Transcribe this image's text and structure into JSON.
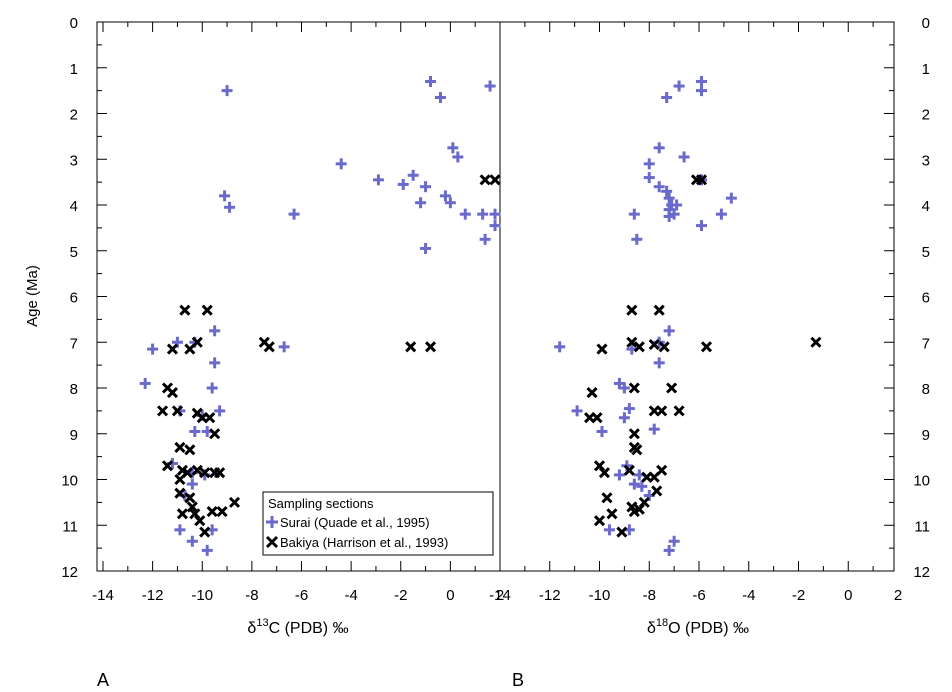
{
  "figure": {
    "ylabel": "Age (Ma)",
    "panel_a_letter": "A",
    "panel_b_letter": "B",
    "xlabel_a": {
      "delta": "δ",
      "sup": "13",
      "rest": "C (PDB) ‰"
    },
    "xlabel_b": {
      "delta": "δ",
      "sup": "18",
      "rest": "O (PDB) ‰"
    },
    "legend": {
      "title": "Sampling sections",
      "entries": [
        {
          "label": "Surai (Quade et al., 1995)",
          "color": "#6a6acc",
          "marker": "plus"
        },
        {
          "label": "Bakiya (Harrison et al., 1993)",
          "color": "#000000",
          "marker": "x"
        }
      ]
    }
  },
  "chart_data": [
    {
      "type": "scatter",
      "panel": "A",
      "xlim": [
        -14,
        2
      ],
      "ylim": [
        12,
        0
      ],
      "x_ticks": [
        -14,
        -12,
        -10,
        -8,
        -6,
        -4,
        -2,
        0,
        2
      ],
      "y_ticks": [
        0,
        1,
        2,
        3,
        4,
        5,
        6,
        7,
        8,
        9,
        10,
        11,
        12
      ],
      "series": [
        {
          "name": "Surai (Quade et al., 1995)",
          "color": "#6a6acc",
          "marker": "plus",
          "points": [
            [
              -9.0,
              1.5
            ],
            [
              -0.8,
              1.3
            ],
            [
              -0.4,
              1.65
            ],
            [
              1.6,
              1.4
            ],
            [
              0.1,
              2.75
            ],
            [
              0.3,
              2.95
            ],
            [
              -4.4,
              3.1
            ],
            [
              -2.9,
              3.45
            ],
            [
              -1.9,
              3.55
            ],
            [
              -1.5,
              3.35
            ],
            [
              -1.0,
              3.6
            ],
            [
              -0.2,
              3.8
            ],
            [
              0.0,
              3.95
            ],
            [
              -1.2,
              3.95
            ],
            [
              -9.1,
              3.8
            ],
            [
              -8.9,
              4.05
            ],
            [
              -6.3,
              4.2
            ],
            [
              0.6,
              4.2
            ],
            [
              1.3,
              4.2
            ],
            [
              1.8,
              4.2
            ],
            [
              1.8,
              4.45
            ],
            [
              1.4,
              4.75
            ],
            [
              -1.0,
              4.95
            ],
            [
              -9.5,
              6.75
            ],
            [
              -9.5,
              7.45
            ],
            [
              -12.0,
              7.15
            ],
            [
              -11.0,
              7.0
            ],
            [
              -10.3,
              7.0
            ],
            [
              -6.7,
              7.1
            ],
            [
              -12.3,
              7.9
            ],
            [
              -9.6,
              8.0
            ],
            [
              -10.9,
              8.5
            ],
            [
              -9.3,
              8.5
            ],
            [
              -10.0,
              8.6
            ],
            [
              -10.3,
              8.95
            ],
            [
              -9.8,
              8.95
            ],
            [
              -11.2,
              9.65
            ],
            [
              -10.4,
              9.85
            ],
            [
              -9.9,
              9.9
            ],
            [
              -10.4,
              10.1
            ],
            [
              -10.7,
              10.35
            ],
            [
              -10.9,
              11.1
            ],
            [
              -9.6,
              11.1
            ],
            [
              -10.4,
              11.35
            ],
            [
              -9.8,
              11.55
            ]
          ]
        },
        {
          "name": "Bakiya (Harrison et al., 1993)",
          "color": "#000000",
          "marker": "x",
          "points": [
            [
              1.4,
              3.45
            ],
            [
              1.8,
              3.45
            ],
            [
              -10.7,
              6.3
            ],
            [
              -9.8,
              6.3
            ],
            [
              -11.2,
              7.15
            ],
            [
              -10.5,
              7.15
            ],
            [
              -10.2,
              7.0
            ],
            [
              -7.5,
              7.0
            ],
            [
              -7.3,
              7.1
            ],
            [
              -1.6,
              7.1
            ],
            [
              -0.8,
              7.1
            ],
            [
              -11.4,
              8.0
            ],
            [
              -11.2,
              8.1
            ],
            [
              -11.6,
              8.5
            ],
            [
              -11.0,
              8.5
            ],
            [
              -10.2,
              8.55
            ],
            [
              -10.0,
              8.65
            ],
            [
              -9.7,
              8.65
            ],
            [
              -9.5,
              9.0
            ],
            [
              -10.9,
              9.3
            ],
            [
              -10.5,
              9.35
            ],
            [
              -11.4,
              9.7
            ],
            [
              -10.8,
              9.8
            ],
            [
              -10.6,
              9.85
            ],
            [
              -10.2,
              9.8
            ],
            [
              -9.9,
              9.85
            ],
            [
              -9.5,
              9.85
            ],
            [
              -9.3,
              9.85
            ],
            [
              -10.9,
              10.0
            ],
            [
              -10.5,
              10.4
            ],
            [
              -10.4,
              10.6
            ],
            [
              -10.8,
              10.75
            ],
            [
              -10.3,
              10.75
            ],
            [
              -9.6,
              10.7
            ],
            [
              -9.2,
              10.7
            ],
            [
              -8.7,
              10.5
            ],
            [
              -10.9,
              10.3
            ],
            [
              -10.1,
              10.9
            ],
            [
              -9.9,
              11.15
            ]
          ]
        }
      ]
    },
    {
      "type": "scatter",
      "panel": "B",
      "xlim": [
        -14,
        2
      ],
      "ylim": [
        12,
        0
      ],
      "x_ticks": [
        -14,
        -12,
        -10,
        -8,
        -6,
        -4,
        -2,
        0,
        2
      ],
      "y_ticks": [
        0,
        1,
        2,
        3,
        4,
        5,
        6,
        7,
        8,
        9,
        10,
        11,
        12
      ],
      "series": [
        {
          "name": "Surai (Quade et al., 1995)",
          "color": "#6a6acc",
          "marker": "plus",
          "points": [
            [
              -5.9,
              1.3
            ],
            [
              -5.9,
              1.5
            ],
            [
              -6.8,
              1.4
            ],
            [
              -7.3,
              1.65
            ],
            [
              -7.6,
              2.75
            ],
            [
              -6.6,
              2.95
            ],
            [
              -8.0,
              3.1
            ],
            [
              -8.0,
              3.4
            ],
            [
              -7.6,
              3.6
            ],
            [
              -7.3,
              3.7
            ],
            [
              -7.2,
              3.85
            ],
            [
              -7.1,
              4.0
            ],
            [
              -6.9,
              4.0
            ],
            [
              -7.2,
              4.1
            ],
            [
              -7.0,
              4.2
            ],
            [
              -7.2,
              4.25
            ],
            [
              -5.9,
              3.45
            ],
            [
              -4.7,
              3.85
            ],
            [
              -5.1,
              4.2
            ],
            [
              -5.9,
              4.45
            ],
            [
              -8.6,
              4.2
            ],
            [
              -8.5,
              4.75
            ],
            [
              -7.2,
              6.75
            ],
            [
              -7.6,
              7.0
            ],
            [
              -7.6,
              7.45
            ],
            [
              -8.7,
              7.15
            ],
            [
              -11.6,
              7.1
            ],
            [
              -9.2,
              7.9
            ],
            [
              -9.0,
              8.0
            ],
            [
              -8.8,
              8.45
            ],
            [
              -10.9,
              8.5
            ],
            [
              -9.0,
              8.65
            ],
            [
              -7.8,
              8.9
            ],
            [
              -9.9,
              8.95
            ],
            [
              -8.9,
              9.7
            ],
            [
              -8.4,
              9.9
            ],
            [
              -8.6,
              10.1
            ],
            [
              -8.3,
              10.15
            ],
            [
              -8.0,
              10.35
            ],
            [
              -9.2,
              9.9
            ],
            [
              -9.6,
              11.1
            ],
            [
              -8.8,
              11.1
            ],
            [
              -7.0,
              11.35
            ],
            [
              -7.2,
              11.55
            ]
          ]
        },
        {
          "name": "Bakiya (Harrison et al., 1993)",
          "color": "#000000",
          "marker": "x",
          "points": [
            [
              -6.1,
              3.45
            ],
            [
              -5.9,
              3.45
            ],
            [
              -8.7,
              6.3
            ],
            [
              -7.6,
              6.3
            ],
            [
              -9.9,
              7.15
            ],
            [
              -8.7,
              7.0
            ],
            [
              -8.4,
              7.1
            ],
            [
              -7.8,
              7.05
            ],
            [
              -7.4,
              7.1
            ],
            [
              -5.7,
              7.1
            ],
            [
              -1.3,
              7.0
            ],
            [
              -10.3,
              8.1
            ],
            [
              -8.6,
              8.0
            ],
            [
              -7.1,
              8.0
            ],
            [
              -10.4,
              8.65
            ],
            [
              -10.1,
              8.65
            ],
            [
              -7.8,
              8.5
            ],
            [
              -7.5,
              8.5
            ],
            [
              -6.8,
              8.5
            ],
            [
              -8.6,
              9.0
            ],
            [
              -8.6,
              9.3
            ],
            [
              -8.5,
              9.35
            ],
            [
              -10.0,
              9.7
            ],
            [
              -9.8,
              9.85
            ],
            [
              -8.8,
              9.8
            ],
            [
              -8.1,
              9.95
            ],
            [
              -7.8,
              9.95
            ],
            [
              -7.5,
              9.8
            ],
            [
              -7.7,
              10.25
            ],
            [
              -9.7,
              10.4
            ],
            [
              -8.2,
              10.5
            ],
            [
              -8.4,
              10.65
            ],
            [
              -8.7,
              10.6
            ],
            [
              -8.6,
              10.7
            ],
            [
              -9.5,
              10.75
            ],
            [
              -10.0,
              10.9
            ],
            [
              -9.1,
              11.15
            ]
          ]
        }
      ]
    }
  ]
}
